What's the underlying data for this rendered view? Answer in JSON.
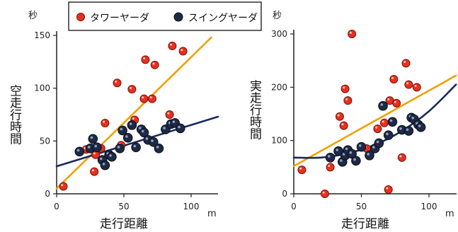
{
  "legend": {
    "items": [
      {
        "label": "タワーヤーダ",
        "color": "#e8301e"
      },
      {
        "label": "スイングヤーダ",
        "color": "#1e2a44"
      }
    ]
  },
  "chart_data": [
    {
      "type": "scatter",
      "xlabel": "走行距離",
      "ylabel": "空走行時間",
      "x_unit": "m",
      "y_unit": "秒",
      "xlim": [
        0,
        120
      ],
      "ylim": [
        0,
        150
      ],
      "x_ticks": [
        "0",
        "50",
        "100"
      ],
      "y_ticks": [
        "0",
        "50",
        "100",
        "150"
      ],
      "series": [
        {
          "name": "タワーヤーダ",
          "color": "#e8301e",
          "line_color": "#f2a000",
          "points": [
            [
              5,
              7
            ],
            [
              22,
              42
            ],
            [
              27,
              43
            ],
            [
              28,
              21
            ],
            [
              29,
              37
            ],
            [
              33,
              43
            ],
            [
              36,
              67
            ],
            [
              45,
              105
            ],
            [
              48,
              46
            ],
            [
              56,
              99
            ],
            [
              58,
              70
            ],
            [
              65,
              90
            ],
            [
              66,
              127
            ],
            [
              68,
              51
            ],
            [
              71,
              90
            ],
            [
              73,
              122
            ],
            [
              84,
              75
            ],
            [
              86,
              140
            ],
            [
              94,
              135
            ]
          ],
          "trend": {
            "kind": "linear",
            "x": [
              0,
              115
            ],
            "y": [
              5,
              148
            ]
          }
        },
        {
          "name": "スイングヤーダ",
          "color": "#1e2a44",
          "line_color": "#1a2a60",
          "points": [
            [
              17,
              40
            ],
            [
              25,
              43
            ],
            [
              27,
              52
            ],
            [
              30,
              44
            ],
            [
              34,
              32
            ],
            [
              36,
              27
            ],
            [
              39,
              37
            ],
            [
              41,
              35
            ],
            [
              47,
              43
            ],
            [
              49,
              60
            ],
            [
              53,
              53
            ],
            [
              56,
              65
            ],
            [
              59,
              44
            ],
            [
              63,
              61
            ],
            [
              65,
              58
            ],
            [
              68,
              51
            ],
            [
              72,
              49
            ],
            [
              76,
              43
            ],
            [
              81,
              61
            ],
            [
              85,
              66
            ],
            [
              88,
              67
            ],
            [
              92,
              62
            ]
          ],
          "trend": {
            "kind": "linear",
            "x": [
              0,
              120
            ],
            "y": [
              26,
              73
            ]
          }
        }
      ]
    },
    {
      "type": "scatter",
      "xlabel": "走行距離",
      "ylabel": "実走行時間",
      "x_unit": "m",
      "y_unit": "秒",
      "xlim": [
        0,
        120
      ],
      "ylim": [
        0,
        300
      ],
      "x_ticks": [
        "0",
        "50",
        "100"
      ],
      "y_ticks": [
        "0",
        "100",
        "200",
        "300"
      ],
      "series": [
        {
          "name": "タワーヤーダ",
          "color": "#e8301e",
          "line_color": "#f2a000",
          "points": [
            [
              6,
              45
            ],
            [
              23,
              0
            ],
            [
              27,
              50
            ],
            [
              34,
              145
            ],
            [
              37,
              128
            ],
            [
              38,
              197
            ],
            [
              40,
              175
            ],
            [
              43,
              300
            ],
            [
              54,
              85
            ],
            [
              62,
              122
            ],
            [
              67,
              133
            ],
            [
              70,
              8
            ],
            [
              71,
              175
            ],
            [
              74,
              215
            ],
            [
              76,
              170
            ],
            [
              80,
              68
            ],
            [
              83,
              245
            ],
            [
              85,
              205
            ],
            [
              91,
              200
            ]
          ],
          "trend": {
            "kind": "linear",
            "x": [
              0,
              120
            ],
            "y": [
              52,
              222
            ]
          }
        },
        {
          "name": "スイングヤーダ",
          "color": "#1e2a44",
          "line_color": "#1a2a60",
          "points": [
            [
              27,
              68
            ],
            [
              33,
              80
            ],
            [
              36,
              60
            ],
            [
              38,
              72
            ],
            [
              40,
              82
            ],
            [
              43,
              75
            ],
            [
              46,
              62
            ],
            [
              50,
              88
            ],
            [
              56,
              72
            ],
            [
              60,
              85
            ],
            [
              63,
              95
            ],
            [
              66,
              165
            ],
            [
              70,
              110
            ],
            [
              73,
              135
            ],
            [
              80,
              120
            ],
            [
              85,
              118
            ],
            [
              87,
              143
            ],
            [
              89,
              140
            ],
            [
              92,
              130
            ],
            [
              94,
              125
            ]
          ],
          "trend": {
            "kind": "curve",
            "x": [
              0,
              20,
              40,
              60,
              80,
              100,
              120
            ],
            "y": [
              68,
              68,
              76,
              92,
              118,
              155,
              205
            ]
          }
        }
      ]
    }
  ]
}
